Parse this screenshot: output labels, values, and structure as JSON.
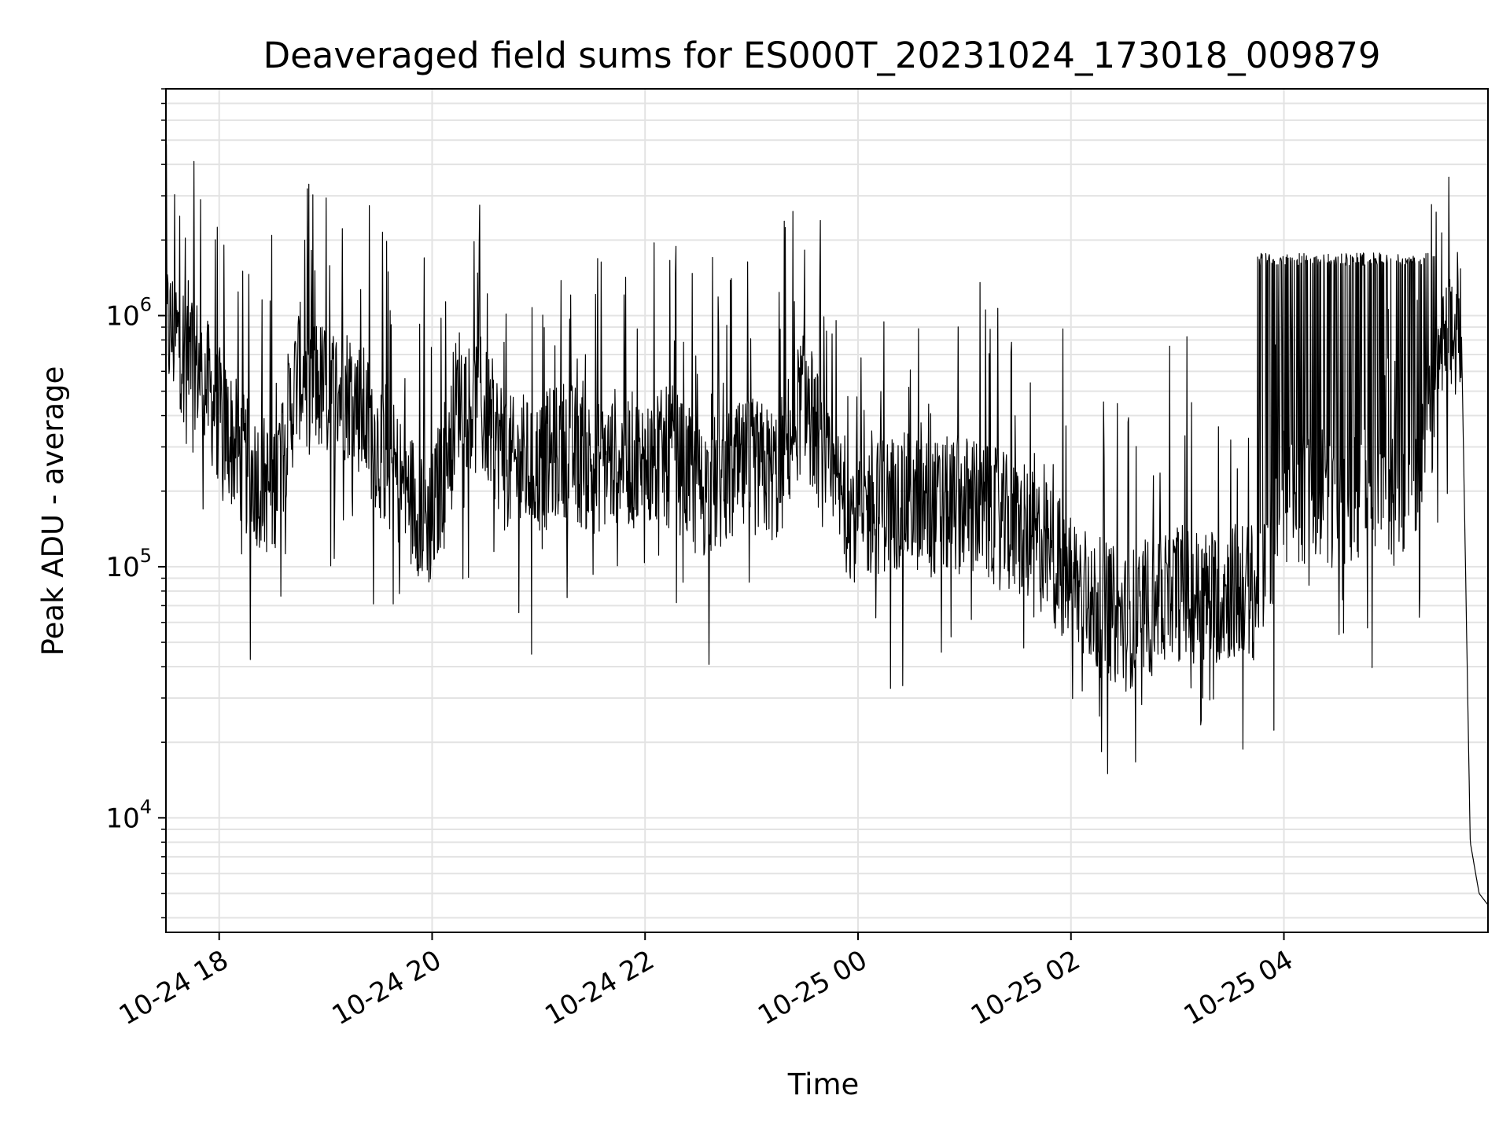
{
  "chart_data": {
    "type": "line",
    "title": "Deaveraged field sums for ES000T_20231024_173018_009879",
    "xlabel": "Time",
    "ylabel": "Peak ADU - average",
    "yscale": "log",
    "ylim": [
      3500,
      8000000
    ],
    "xlim": [
      "10-24 17:30",
      "10-25 05:55"
    ],
    "grid": true,
    "line_color": "#000000",
    "x_ticks": [
      {
        "value": "10-24 18:00",
        "label": "10-24 18"
      },
      {
        "value": "10-24 20:00",
        "label": "10-24 20"
      },
      {
        "value": "10-24 22:00",
        "label": "10-24 22"
      },
      {
        "value": "10-25 00:00",
        "label": "10-25 00"
      },
      {
        "value": "10-25 02:00",
        "label": "10-25 02"
      },
      {
        "value": "10-25 04:00",
        "label": "10-25 04"
      }
    ],
    "y_ticks": [
      {
        "value": 10000,
        "base": "10",
        "exp": "4"
      },
      {
        "value": 100000,
        "base": "10",
        "exp": "5"
      },
      {
        "value": 1000000,
        "base": "10",
        "exp": "6"
      }
    ],
    "series": [
      {
        "x": [
          "10-24 17:30",
          "10-24 17:45",
          "10-24 18:00",
          "10-24 18:15",
          "10-24 18:30",
          "10-24 18:45",
          "10-24 19:00",
          "10-24 19:15",
          "10-24 19:30",
          "10-24 19:45",
          "10-24 20:00",
          "10-24 20:15",
          "10-24 20:30",
          "10-24 20:45",
          "10-24 21:00",
          "10-24 21:15",
          "10-24 21:30",
          "10-24 21:45",
          "10-24 22:00",
          "10-24 22:15",
          "10-24 22:30",
          "10-24 22:45",
          "10-24 23:00",
          "10-24 23:15",
          "10-24 23:30",
          "10-24 23:45",
          "10-25 00:00",
          "10-25 00:15",
          "10-25 00:30",
          "10-25 00:45",
          "10-25 01:00",
          "10-25 01:15",
          "10-25 01:30",
          "10-25 01:45",
          "10-25 02:00",
          "10-25 02:15",
          "10-25 02:30",
          "10-25 02:45",
          "10-25 03:00",
          "10-25 03:15",
          "10-25 03:30",
          "10-25 03:45",
          "10-25 04:00",
          "10-25 04:15",
          "10-25 04:30",
          "10-25 04:45",
          "10-25 05:00",
          "10-25 05:15",
          "10-25 05:30",
          "10-25 05:40",
          "10-25 05:45",
          "10-25 05:50",
          "10-25 05:55"
        ],
        "values": [
          900000,
          700000,
          400000,
          250000,
          200000,
          600000,
          500000,
          500000,
          300000,
          200000,
          150000,
          500000,
          400000,
          250000,
          250000,
          300000,
          250000,
          280000,
          250000,
          280000,
          200000,
          220000,
          250000,
          230000,
          500000,
          200000,
          160000,
          180000,
          180000,
          170000,
          180000,
          160000,
          140000,
          120000,
          90000,
          70000,
          60000,
          70000,
          80000,
          75000,
          80000,
          80000,
          200000,
          180000,
          190000,
          200000,
          190000,
          200000,
          700000,
          900000,
          8000,
          5000,
          4500
        ]
      }
    ]
  }
}
